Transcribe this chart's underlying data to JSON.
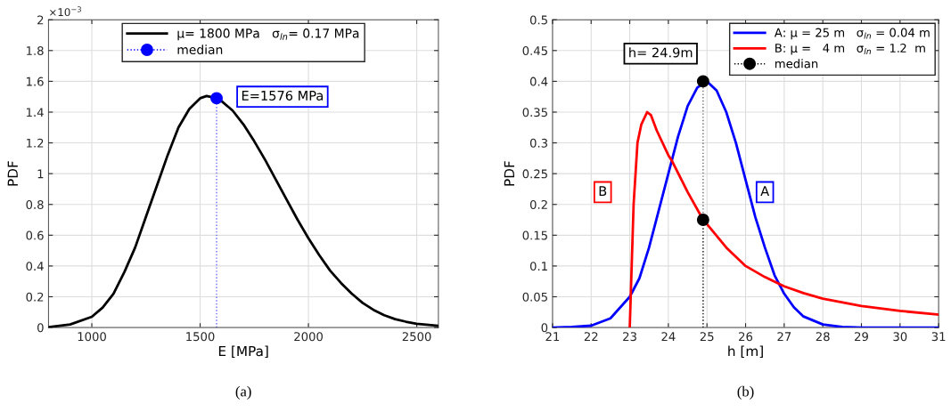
{
  "chart_data": [
    {
      "type": "line",
      "title": "(a)",
      "xlabel": "E [MPa]",
      "ylabel": "PDF",
      "xlim": [
        800,
        2600
      ],
      "xticks": [
        1000,
        1500,
        2000,
        2500
      ],
      "ylim": [
        0,
        2
      ],
      "yticks": [
        0,
        0.2,
        0.4,
        0.6,
        0.8,
        1,
        1.2,
        1.4,
        1.6,
        1.8,
        2
      ],
      "grid": true,
      "legend": "top",
      "annotations": [
        "×10$^{−3}$",
        "E=1576 MPa"
      ],
      "series": [
        {
          "name": "μ= 1800 MPa   σ$_{ln}$= 0.17 MPa",
          "color": "#000000",
          "line_style": "solid",
          "marker": "none",
          "x": [
            800,
            900,
            1000,
            1050,
            1100,
            1150,
            1200,
            1250,
            1300,
            1350,
            1400,
            1450,
            1500,
            1530,
            1576,
            1600,
            1650,
            1700,
            1750,
            1800,
            1850,
            1900,
            1950,
            2000,
            2050,
            2100,
            2150,
            2200,
            2250,
            2300,
            2350,
            2400,
            2450,
            2500,
            2600
          ],
          "values": [
            0.003,
            0.02,
            0.07,
            0.13,
            0.22,
            0.36,
            0.52,
            0.72,
            0.92,
            1.12,
            1.3,
            1.42,
            1.49,
            1.505,
            1.49,
            1.47,
            1.41,
            1.32,
            1.21,
            1.09,
            0.96,
            0.83,
            0.7,
            0.58,
            0.47,
            0.37,
            0.29,
            0.22,
            0.16,
            0.115,
            0.08,
            0.055,
            0.038,
            0.025,
            0.012
          ]
        },
        {
          "name": "median",
          "type": "lollipop",
          "color": "#0000ff",
          "line_style": "dotted",
          "marker": "circle",
          "x": [
            1576
          ],
          "values": [
            1.49
          ]
        }
      ]
    },
    {
      "type": "line",
      "title": "(b)",
      "xlabel": "h [m]",
      "ylabel": "PDF",
      "xlim": [
        21,
        31
      ],
      "xticks": [
        21,
        22,
        23,
        24,
        25,
        26,
        27,
        28,
        29,
        30,
        31
      ],
      "ylim": [
        0,
        0.5
      ],
      "yticks": [
        0,
        0.05,
        0.1,
        0.15,
        0.2,
        0.25,
        0.3,
        0.35,
        0.4,
        0.45,
        0.5
      ],
      "grid": true,
      "legend": "top right",
      "annotations": [
        "h= 24.9m",
        "B",
        "A"
      ],
      "series": [
        {
          "name": "A: μ = 25 m   σ$_{ln}$ = 0.04 m",
          "color": "#0000ff",
          "line_style": "solid",
          "marker": "none",
          "x": [
            21,
            21.5,
            22,
            22.5,
            23,
            23.25,
            23.5,
            23.75,
            24,
            24.25,
            24.5,
            24.75,
            25,
            25.25,
            25.5,
            25.75,
            26,
            26.25,
            26.5,
            26.75,
            27,
            27.25,
            27.5,
            28,
            28.5,
            29,
            31
          ],
          "values": [
            0,
            0.001,
            0.003,
            0.015,
            0.05,
            0.08,
            0.13,
            0.19,
            0.25,
            0.31,
            0.36,
            0.39,
            0.4,
            0.385,
            0.35,
            0.3,
            0.24,
            0.18,
            0.13,
            0.085,
            0.055,
            0.033,
            0.018,
            0.005,
            0.001,
            0,
            0
          ]
        },
        {
          "name": "B: μ =   4 m   σ$_{ln}$ = 1.2  m",
          "color": "#ff0000",
          "line_style": "solid",
          "marker": "none",
          "x": [
            23,
            23.1,
            23.2,
            23.3,
            23.45,
            23.55,
            23.7,
            24,
            24.1,
            24.5,
            24.9,
            25,
            25.5,
            26,
            26.5,
            27,
            27.5,
            28,
            29,
            30,
            31
          ],
          "values": [
            0,
            0.2,
            0.3,
            0.33,
            0.35,
            0.345,
            0.32,
            0.28,
            0.27,
            0.22,
            0.175,
            0.168,
            0.13,
            0.1,
            0.082,
            0.067,
            0.056,
            0.047,
            0.035,
            0.027,
            0.021
          ]
        },
        {
          "name": "median",
          "type": "lollipop",
          "color": "#000000",
          "line_style": "dotted",
          "marker": "circle",
          "x": [
            24.9,
            24.9
          ],
          "values": [
            0.4,
            0.175
          ]
        }
      ]
    }
  ]
}
